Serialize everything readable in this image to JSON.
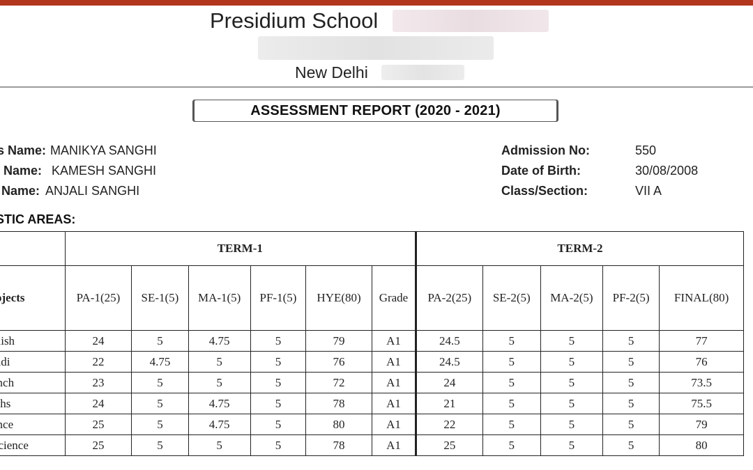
{
  "header": {
    "school_name": "Presidium School",
    "city": "New Delhi",
    "report_title": "ASSESSMENT REPORT (2020 - 2021)",
    "accent_color": "#b2361d"
  },
  "student_info": {
    "left": [
      {
        "label": "s Name:",
        "value": "MANIKYA SANGHI"
      },
      {
        "label": "Name:",
        "value": "KAMESH  SANGHI"
      },
      {
        "label": "Name:",
        "value": "ANJALI SANGHI"
      }
    ],
    "right": [
      {
        "label": "Admission No:",
        "value": "550"
      },
      {
        "label": "Date of Birth:",
        "value": "30/08/2008"
      },
      {
        "label": "Class/Section:",
        "value": "VII A"
      }
    ]
  },
  "section_heading": "STIC AREAS:",
  "table": {
    "term1_label": "TERM-1",
    "term2_label": "TERM-2",
    "subject_header": "ojects",
    "term1_columns": [
      "PA-1(25)",
      "SE-1(5)",
      "MA-1(5)",
      "PF-1(5)",
      "HYE(80)",
      "Grade"
    ],
    "term2_columns": [
      "PA-2(25)",
      "SE-2(5)",
      "MA-2(5)",
      "PF-2(5)",
      "FINAL(80)"
    ],
    "rows": [
      {
        "subject": "glish",
        "term1": [
          "24",
          "5",
          "4.75",
          "5",
          "79",
          "A1"
        ],
        "term2": [
          "24.5",
          "5",
          "5",
          "5",
          "77"
        ]
      },
      {
        "subject": "indi",
        "term1": [
          "22",
          "4.75",
          "5",
          "5",
          "76",
          "A1"
        ],
        "term2": [
          "24.5",
          "5",
          "5",
          "5",
          "76"
        ]
      },
      {
        "subject": "ench",
        "term1": [
          "23",
          "5",
          "5",
          "5",
          "72",
          "A1"
        ],
        "term2": [
          "24",
          "5",
          "5",
          "5",
          "73.5"
        ]
      },
      {
        "subject": "aths",
        "term1": [
          "24",
          "5",
          "4.75",
          "5",
          "78",
          "A1"
        ],
        "term2": [
          "21",
          "5",
          "5",
          "5",
          "75.5"
        ]
      },
      {
        "subject": "ence",
        "term1": [
          "25",
          "5",
          "4.75",
          "5",
          "80",
          "A1"
        ],
        "term2": [
          "22",
          "5",
          "5",
          "5",
          "79"
        ]
      },
      {
        "subject": " Science",
        "term1": [
          "25",
          "5",
          "5",
          "5",
          "78",
          "A1"
        ],
        "term2": [
          "25",
          "5",
          "5",
          "5",
          "80"
        ]
      }
    ]
  }
}
